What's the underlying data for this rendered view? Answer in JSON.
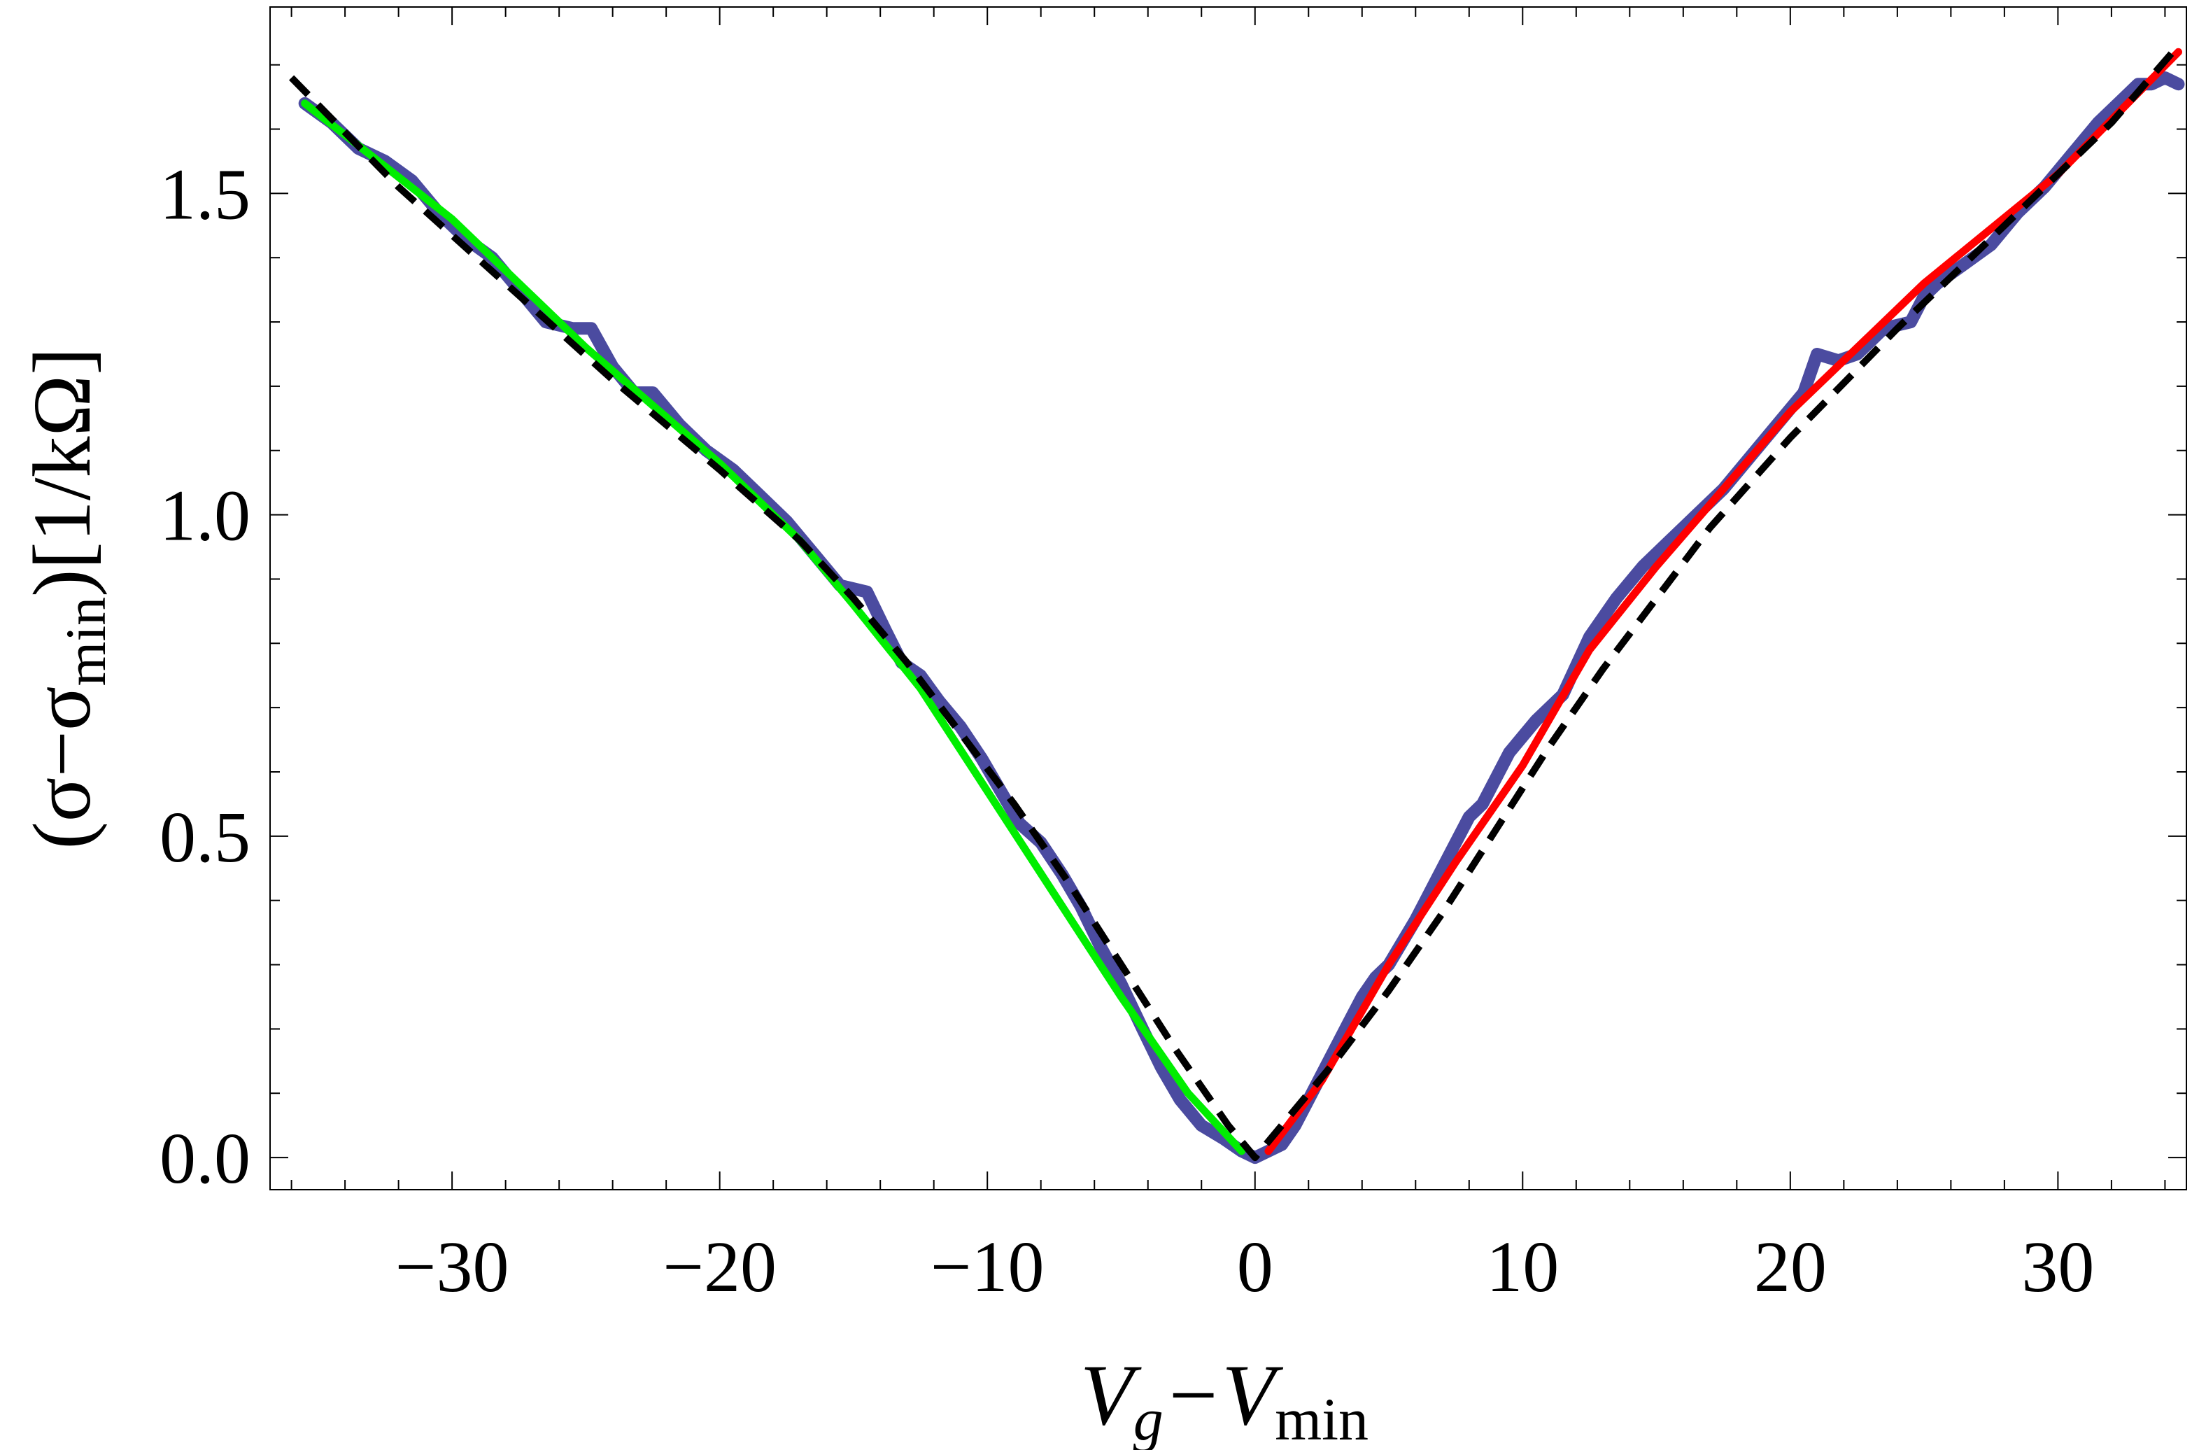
{
  "chart_data": {
    "type": "line",
    "xlabel_parts": {
      "v1": "V",
      "sub1": "g",
      "mid": "−V",
      "sub2": "min"
    },
    "ylabel_parts": {
      "pre": "(σ−σ",
      "sub": "min",
      "post": ")[1/kΩ]"
    },
    "xlim": [
      -36.8,
      34.8
    ],
    "ylim": [
      -0.05,
      1.79
    ],
    "x_major_ticks": [
      -30,
      -20,
      -10,
      0,
      10,
      20,
      30
    ],
    "x_tick_labels": [
      "−30",
      "−20",
      "−10",
      "0",
      "10",
      "20",
      "30"
    ],
    "x_minor_step": 2,
    "y_major_ticks": [
      0.0,
      0.5,
      1.0,
      1.5
    ],
    "y_tick_labels": [
      "0.0",
      "0.5",
      "1.0",
      "1.5"
    ],
    "y_minor_step": 0.1,
    "grid": false,
    "series": [
      {
        "color": "#4b4ba0",
        "style": "thick-solid",
        "x": [
          -35.5,
          -34.5,
          -33.5,
          -32.5,
          -31.5,
          -30.5,
          -29.5,
          -28.5,
          -27.5,
          -26.5,
          -25.5,
          -24.8,
          -24,
          -23.2,
          -22.5,
          -21.5,
          -20.5,
          -19.5,
          -18.5,
          -17.5,
          -16.5,
          -15.5,
          -14.5,
          -13.8,
          -13.2,
          -12.5,
          -11.8,
          -11,
          -10.2,
          -9.5,
          -8.8,
          -8,
          -7.2,
          -6.5,
          -5.8,
          -5,
          -4.2,
          -3.5,
          -2.8,
          -2,
          -1.2,
          -0.5,
          0,
          0.5,
          1,
          1.5,
          2,
          2.5,
          3,
          3.5,
          4,
          4.5,
          5,
          6,
          7,
          8,
          8.5,
          9.5,
          10.5,
          11.5,
          12.5,
          13.5,
          14.5,
          15.5,
          16.5,
          17.5,
          18.5,
          19.5,
          20.5,
          21,
          21.8,
          22.5,
          23.5,
          24.5,
          25,
          25.5,
          26.5,
          27.5,
          28.5,
          29.5,
          30.5,
          31.5,
          32.5,
          33,
          33.5,
          34,
          34.5
        ],
        "y": [
          1.64,
          1.61,
          1.57,
          1.55,
          1.52,
          1.47,
          1.43,
          1.4,
          1.35,
          1.3,
          1.29,
          1.29,
          1.23,
          1.19,
          1.19,
          1.14,
          1.1,
          1.07,
          1.03,
          0.99,
          0.94,
          0.89,
          0.88,
          0.82,
          0.77,
          0.75,
          0.71,
          0.67,
          0.62,
          0.57,
          0.52,
          0.49,
          0.44,
          0.39,
          0.33,
          0.27,
          0.2,
          0.14,
          0.09,
          0.05,
          0.03,
          0.01,
          0.0,
          0.01,
          0.02,
          0.05,
          0.09,
          0.13,
          0.17,
          0.21,
          0.25,
          0.28,
          0.3,
          0.37,
          0.45,
          0.53,
          0.55,
          0.63,
          0.68,
          0.72,
          0.81,
          0.87,
          0.92,
          0.96,
          1.0,
          1.04,
          1.09,
          1.14,
          1.19,
          1.25,
          1.24,
          1.25,
          1.29,
          1.3,
          1.34,
          1.36,
          1.39,
          1.42,
          1.47,
          1.51,
          1.56,
          1.61,
          1.65,
          1.67,
          1.67,
          1.68,
          1.67
        ]
      },
      {
        "color": "#00ee00",
        "style": "solid",
        "x": [
          -35.5,
          -30,
          -25,
          -20,
          -17,
          -15,
          -12.5,
          -10,
          -7.5,
          -5,
          -2.5,
          -0.5
        ],
        "y": [
          1.64,
          1.46,
          1.26,
          1.08,
          0.96,
          0.86,
          0.73,
          0.57,
          0.41,
          0.25,
          0.1,
          0.01
        ]
      },
      {
        "color": "#ff0000",
        "style": "solid",
        "x": [
          0.5,
          2.5,
          5,
          7.5,
          10,
          12.5,
          15,
          20,
          25,
          30,
          34.5
        ],
        "y": [
          0.01,
          0.12,
          0.3,
          0.46,
          0.61,
          0.79,
          0.92,
          1.16,
          1.36,
          1.53,
          1.72
        ]
      },
      {
        "color": "#000000",
        "style": "dashed",
        "x": [
          -36,
          -32,
          -28,
          -24,
          -20,
          -17,
          -15,
          -13,
          -11,
          -9,
          -7,
          -5,
          -3,
          -1,
          0,
          1,
          3,
          5,
          7,
          9,
          11,
          13,
          15,
          17,
          20,
          24,
          28,
          32,
          34.5
        ],
        "y": [
          1.68,
          1.51,
          1.36,
          1.21,
          1.07,
          0.96,
          0.87,
          0.77,
          0.66,
          0.55,
          0.43,
          0.3,
          0.17,
          0.05,
          0.0,
          0.05,
          0.15,
          0.26,
          0.38,
          0.51,
          0.64,
          0.76,
          0.87,
          0.98,
          1.12,
          1.29,
          1.45,
          1.61,
          1.73
        ]
      }
    ]
  }
}
